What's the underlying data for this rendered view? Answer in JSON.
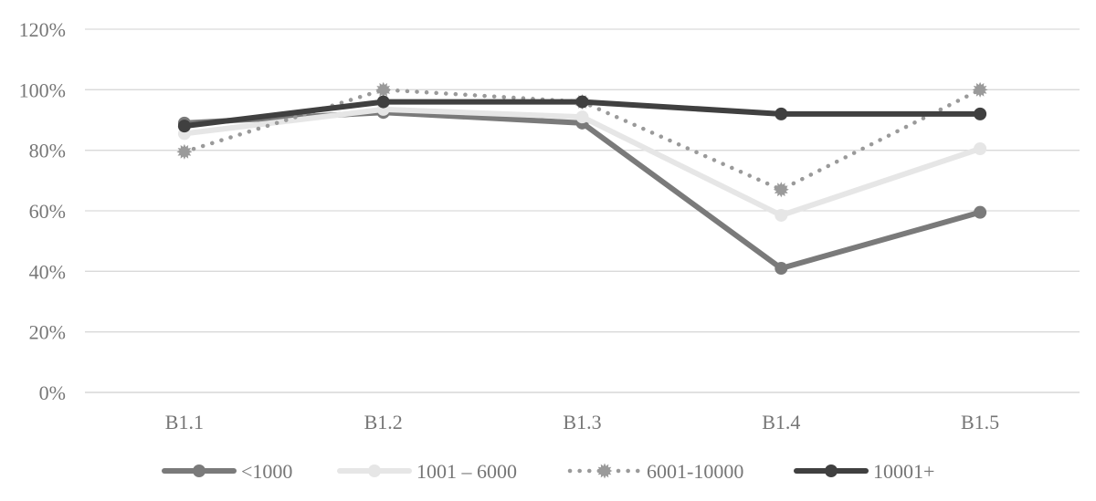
{
  "chart_data": {
    "type": "line",
    "categories": [
      "B1.1",
      "B1.2",
      "B1.3",
      "B1.4",
      "B1.5"
    ],
    "ylim": [
      0,
      1.2
    ],
    "yticks": [
      0,
      0.2,
      0.4,
      0.6,
      0.8,
      1.0,
      1.2
    ],
    "ytick_labels": [
      "0%",
      "20%",
      "40%",
      "60%",
      "80%",
      "100%",
      "120%"
    ],
    "grid": true,
    "legend_position": "bottom",
    "series": [
      {
        "name": "<1000",
        "values": [
          0.89,
          0.925,
          0.89,
          0.41,
          0.595
        ],
        "color": "#7a7a7a",
        "dash": "solid",
        "marker": "circle"
      },
      {
        "name": "1001 – 6000",
        "values": [
          0.855,
          0.935,
          0.91,
          0.585,
          0.805
        ],
        "color": "#e6e6e6",
        "dash": "solid",
        "marker": "circle"
      },
      {
        "name": "6001-10000",
        "values": [
          0.795,
          1.0,
          0.96,
          0.67,
          1.0
        ],
        "color": "#9a9a9a",
        "dash": "dotted",
        "marker": "burst"
      },
      {
        "name": "10001+",
        "values": [
          0.88,
          0.96,
          0.96,
          0.92,
          0.92
        ],
        "color": "#404040",
        "dash": "solid",
        "marker": "circle"
      }
    ]
  }
}
